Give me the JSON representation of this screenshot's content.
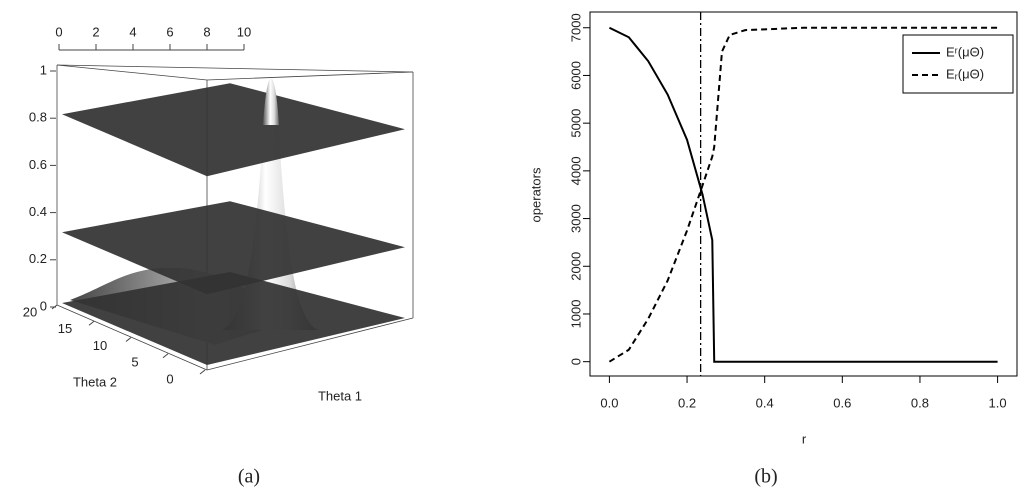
{
  "chart_data": [
    {
      "type": "surface3d",
      "xlabel": "Theta 1",
      "ylabel": "Theta 2",
      "xticks": [
        0,
        2,
        4,
        6,
        8,
        10
      ],
      "xlim": [
        0,
        10
      ],
      "yticks": [
        0,
        5,
        10,
        15,
        20
      ],
      "ylim": [
        0,
        20
      ],
      "zticks": [
        0,
        0.2,
        0.4,
        0.6,
        0.8,
        1
      ],
      "zlim": [
        0,
        1
      ],
      "levels": [
        0,
        0.3,
        0.8
      ],
      "color": "#333333",
      "caption": "(a)"
    },
    {
      "type": "line",
      "xlabel": "r",
      "ylabel": "operators",
      "x": [
        0,
        0.05,
        0.1,
        0.15,
        0.2,
        0.24,
        0.265,
        0.27,
        0.29,
        0.31,
        0.35,
        0.5,
        1.0
      ],
      "series": [
        {
          "name": "Eʳ(μΘ)",
          "color": "#000000",
          "dash": "solid",
          "values": [
            7000,
            6800,
            6300,
            5600,
            4650,
            3500,
            2550,
            0,
            0,
            0,
            0,
            0,
            0
          ]
        },
        {
          "name": "Eᵣ(μΘ)",
          "color": "#000000",
          "dash": "dashed",
          "values": [
            0,
            250,
            900,
            1700,
            2750,
            3700,
            4300,
            4500,
            6500,
            6850,
            6950,
            7000,
            7000
          ]
        }
      ],
      "vline": 0.235,
      "xlim": [
        -0.05,
        1.05
      ],
      "xticks": [
        {
          "value": 0,
          "label": "0.0"
        },
        0.2,
        0.4,
        0.6,
        0.8,
        {
          "value": 1,
          "label": "1.0"
        }
      ],
      "ylim": [
        -300,
        7330
      ],
      "yticks": [
        0,
        1000,
        2000,
        3000,
        4000,
        5000,
        6000,
        7000
      ],
      "legend": "top-right",
      "caption": "(b)"
    }
  ]
}
